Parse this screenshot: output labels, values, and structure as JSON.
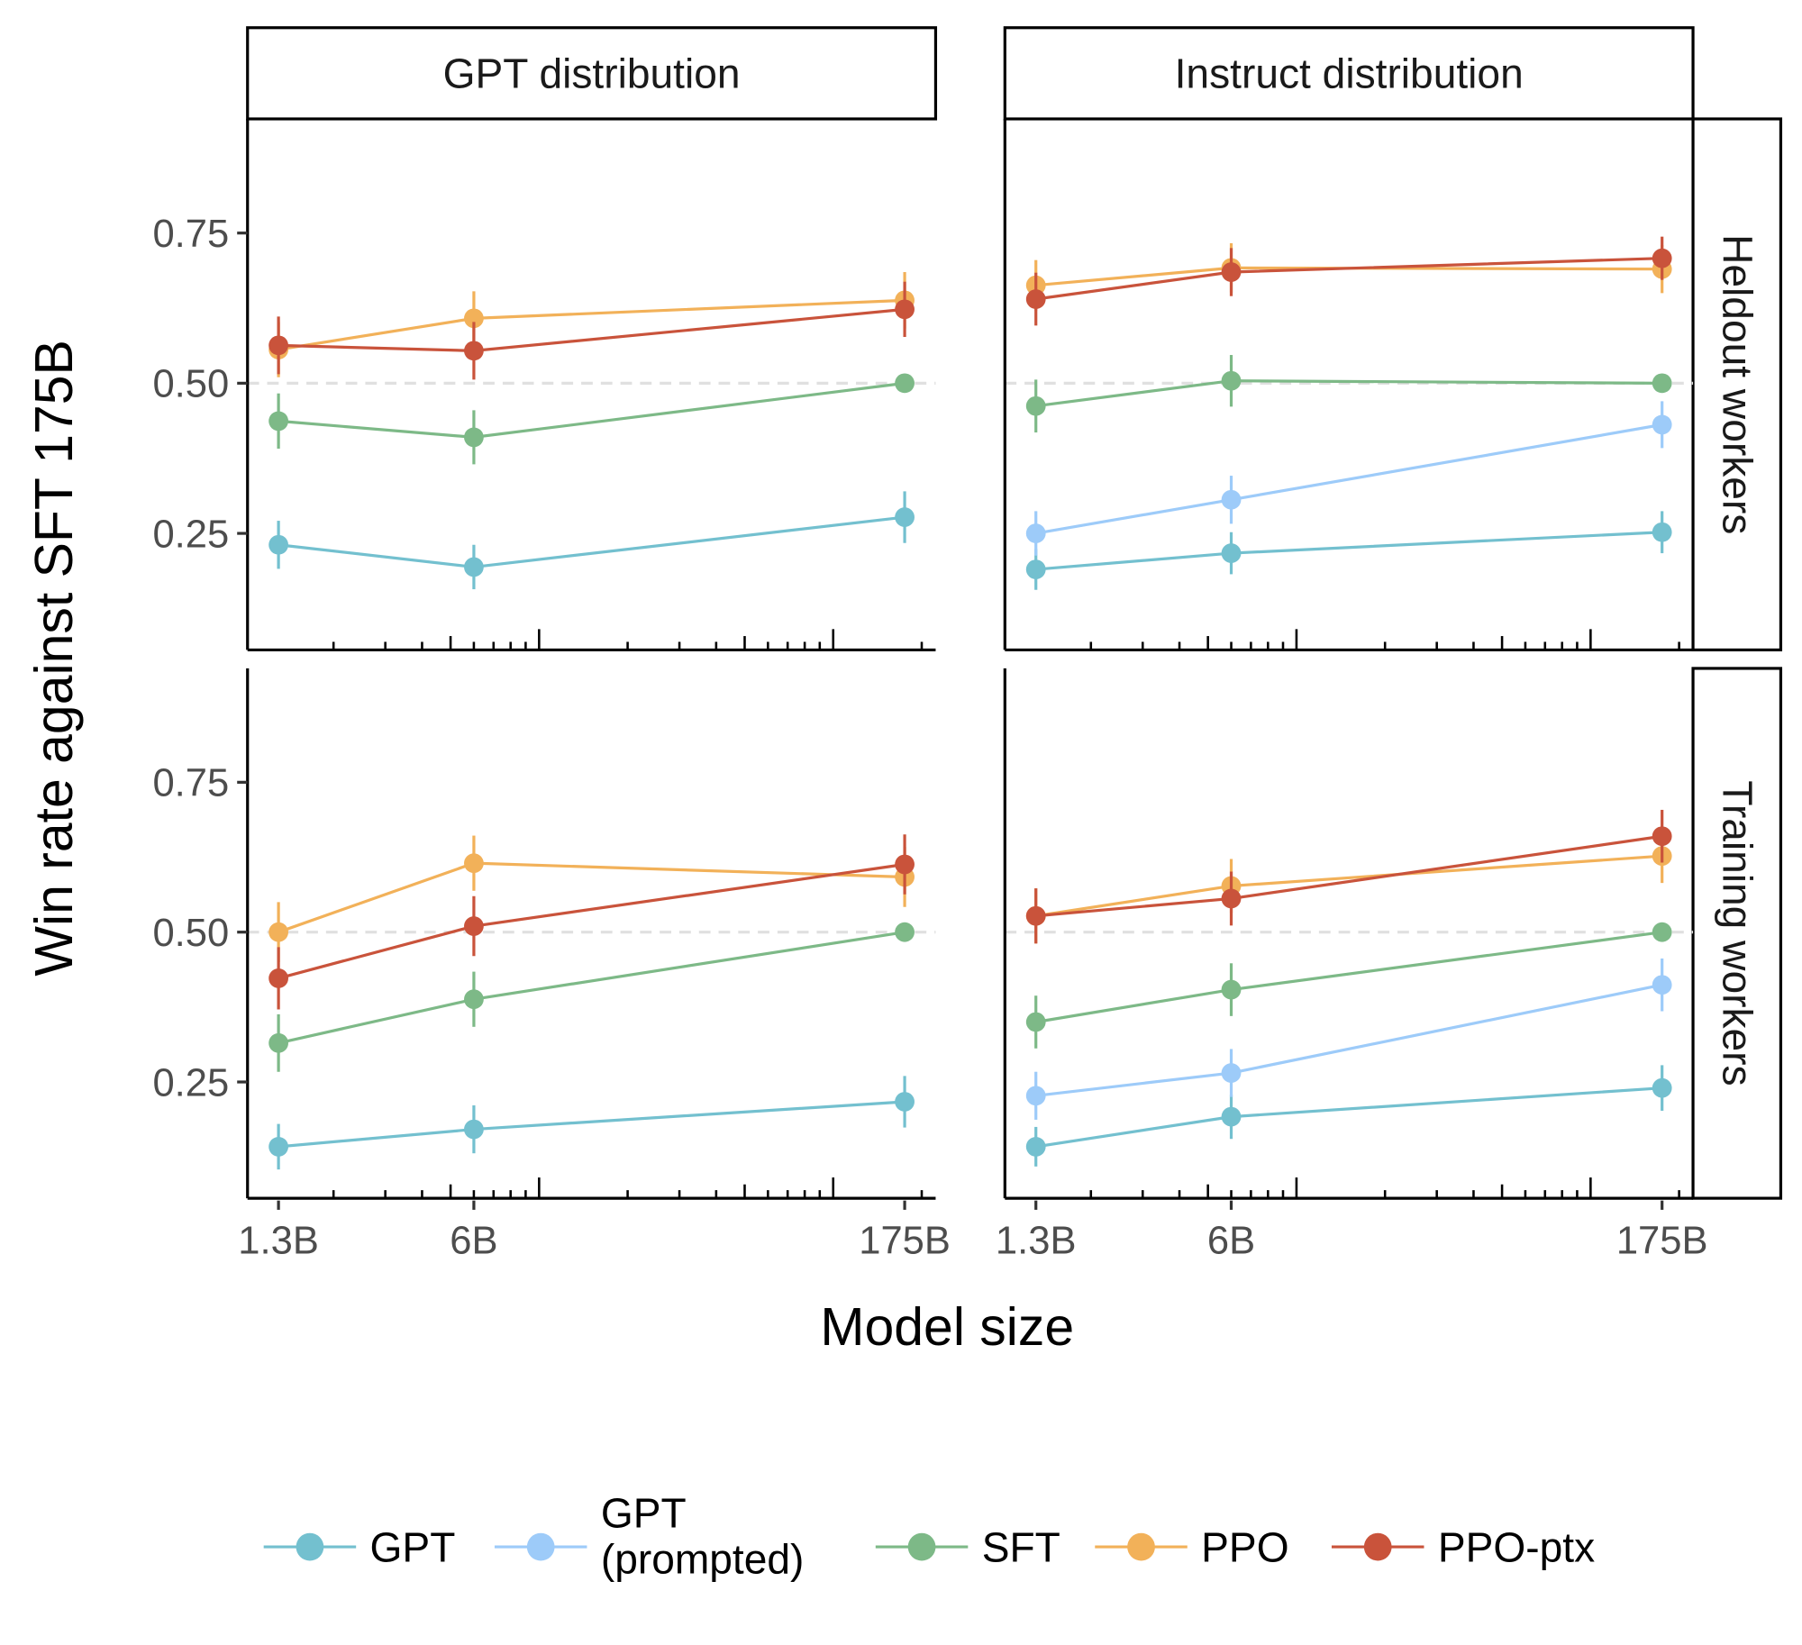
{
  "chart_data": {
    "type": "line",
    "xlabel": "Model size",
    "ylabel": "Win rate against SFT 175B",
    "x_scale": "log",
    "x": [
      1.3,
      6,
      175
    ],
    "x_tick_labels": [
      "1.3B",
      "6B",
      "175B"
    ],
    "y_ticks": [
      0.25,
      0.5,
      0.75
    ],
    "y_tick_labels": [
      "0.25",
      "0.50",
      "0.75"
    ],
    "ylim": [
      0.056,
      0.94
    ],
    "xlim": [
      1.02,
      223
    ],
    "reference_line": 0.5,
    "grid": false,
    "legend_position": "bottom",
    "column_facets": [
      "GPT distribution",
      "Instruct distribution"
    ],
    "row_facets": [
      "Heldout workers",
      "Training workers"
    ],
    "legend": [
      {
        "name": "GPT",
        "lines": [
          "GPT"
        ],
        "color": "#73C0CF"
      },
      {
        "name": "GPT (prompted)",
        "lines": [
          "GPT",
          "(prompted)"
        ],
        "color": "#9DCBF9"
      },
      {
        "name": "SFT",
        "lines": [
          "SFT"
        ],
        "color": "#7DB987"
      },
      {
        "name": "PPO",
        "lines": [
          "PPO"
        ],
        "color": "#F2B159"
      },
      {
        "name": "PPO-ptx",
        "lines": [
          "PPO-ptx"
        ],
        "color": "#C9533B"
      }
    ],
    "panels": [
      {
        "row": 0,
        "col": 0,
        "series": [
          {
            "name": "GPT",
            "values": [
              0.231,
              0.194,
              0.277
            ],
            "err": [
              0.04,
              0.037,
              0.043
            ]
          },
          {
            "name": "SFT",
            "values": [
              0.437,
              0.41,
              0.5
            ],
            "err": [
              0.046,
              0.045,
              0
            ]
          },
          {
            "name": "PPO",
            "values": [
              0.556,
              0.608,
              0.638
            ],
            "err": [
              0.046,
              0.045,
              0.047
            ]
          },
          {
            "name": "PPO-ptx",
            "values": [
              0.563,
              0.554,
              0.623
            ],
            "err": [
              0.048,
              0.048,
              0.046
            ]
          }
        ]
      },
      {
        "row": 0,
        "col": 1,
        "series": [
          {
            "name": "GPT",
            "values": [
              0.19,
              0.217,
              0.252
            ],
            "err": [
              0.034,
              0.035,
              0.035
            ]
          },
          {
            "name": "GPT (prompted)",
            "values": [
              0.25,
              0.306,
              0.431
            ],
            "err": [
              0.037,
              0.04,
              0.039
            ]
          },
          {
            "name": "SFT",
            "values": [
              0.462,
              0.504,
              0.5
            ],
            "err": [
              0.044,
              0.043,
              0
            ]
          },
          {
            "name": "PPO",
            "values": [
              0.663,
              0.692,
              0.69
            ],
            "err": [
              0.042,
              0.041,
              0.04
            ]
          },
          {
            "name": "PPO-ptx",
            "values": [
              0.64,
              0.685,
              0.708
            ],
            "err": [
              0.044,
              0.04,
              0.036
            ]
          }
        ]
      },
      {
        "row": 1,
        "col": 0,
        "series": [
          {
            "name": "GPT",
            "values": [
              0.142,
              0.171,
              0.217
            ],
            "err": [
              0.038,
              0.04,
              0.043
            ]
          },
          {
            "name": "SFT",
            "values": [
              0.315,
              0.388,
              0.5
            ],
            "err": [
              0.048,
              0.046,
              0
            ]
          },
          {
            "name": "PPO",
            "values": [
              0.5,
              0.615,
              0.592
            ],
            "err": [
              0.05,
              0.046,
              0.05
            ]
          },
          {
            "name": "PPO-ptx",
            "values": [
              0.423,
              0.51,
              0.613
            ],
            "err": [
              0.052,
              0.05,
              0.05
            ]
          }
        ]
      },
      {
        "row": 1,
        "col": 1,
        "series": [
          {
            "name": "GPT",
            "values": [
              0.142,
              0.192,
              0.24
            ],
            "err": [
              0.033,
              0.037,
              0.038
            ]
          },
          {
            "name": "GPT (prompted)",
            "values": [
              0.227,
              0.265,
              0.412
            ],
            "err": [
              0.04,
              0.04,
              0.044
            ]
          },
          {
            "name": "SFT",
            "values": [
              0.35,
              0.404,
              0.5
            ],
            "err": [
              0.044,
              0.044,
              0
            ]
          },
          {
            "name": "PPO",
            "values": [
              0.527,
              0.577,
              0.627
            ],
            "err": [
              0.046,
              0.045,
              0.045
            ]
          },
          {
            "name": "PPO-ptx",
            "values": [
              0.527,
              0.556,
              0.66
            ],
            "err": [
              0.046,
              0.045,
              0.044
            ]
          }
        ]
      }
    ]
  }
}
